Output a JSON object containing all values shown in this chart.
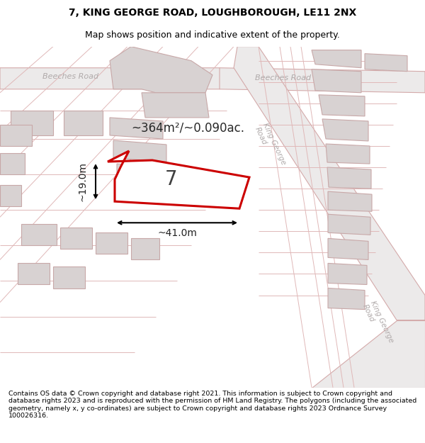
{
  "title_line1": "7, KING GEORGE ROAD, LOUGHBOROUGH, LE11 2NX",
  "title_line2": "Map shows position and indicative extent of the property.",
  "footer_text": "Contains OS data © Crown copyright and database right 2021. This information is subject to Crown copyright and database rights 2023 and is reproduced with the permission of HM Land Registry. The polygons (including the associated geometry, namely x, y co-ordinates) are subject to Crown copyright and database rights 2023 Ordnance Survey 100026316.",
  "area_label": "~364m²/~0.090ac.",
  "number_label": "7",
  "width_label": "~41.0m",
  "height_label": "~19.0m",
  "map_bg": "#f2efef",
  "road_fill": "#e8e2e2",
  "road_edge": "#d4aaaa",
  "bldg_fill": "#d8d2d2",
  "bldg_edge": "#c8a8a8",
  "plot_edge": "#cc0000",
  "plot_fill": "#ffffff",
  "road_label": "#b0aaaa",
  "street_line": "#e0b8b8",
  "title_fs": 10,
  "sub_fs": 9,
  "footer_fs": 6.8
}
